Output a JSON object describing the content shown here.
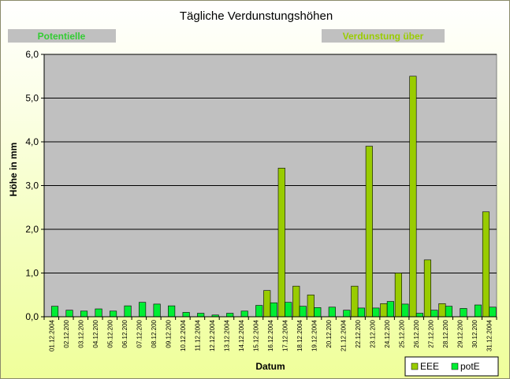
{
  "chart_data": {
    "type": "bar",
    "title": "Tägliche Verdunstungshöhen",
    "xlabel": "Datum",
    "ylabel": "Höhe in mm",
    "ylim": [
      0,
      6
    ],
    "yticks": [
      "0,0",
      "1,0",
      "2,0",
      "3,0",
      "4,0",
      "5,0",
      "6,0"
    ],
    "grid": true,
    "legend": "bottom-right",
    "categories": [
      "01.12.2004",
      "02.12.200",
      "03.12.200",
      "04.12.200",
      "05.12.200",
      "06.12.200",
      "07.12.200",
      "08.12.200",
      "09.12.200",
      "10.12.2004",
      "11.12.2004",
      "12.12.2004",
      "13.12.2004",
      "14.12.2004",
      "15.12.2004",
      "16.12.2004",
      "17.12.2004",
      "18.12.2004",
      "19.12.2004",
      "20.12.200",
      "21.12.2004",
      "22.12.200",
      "23.12.200",
      "24.12.200",
      "25.12.200",
      "26.12.200",
      "27.12.200",
      "28.12.200",
      "29.12.200",
      "30.12.200",
      "31.12.2004"
    ],
    "series": [
      {
        "name": "EEE",
        "color": "#99cc00",
        "values": [
          0,
          0,
          0,
          0,
          0,
          0,
          0,
          0,
          0,
          0,
          0,
          0,
          0,
          0,
          0,
          0.6,
          3.4,
          0.7,
          0.5,
          0,
          0,
          0.7,
          3.9,
          0.3,
          1.0,
          5.5,
          1.3,
          0.3,
          0,
          0,
          2.4
        ]
      },
      {
        "name": "potE",
        "color": "#00ee33",
        "values": [
          0.24,
          0.15,
          0.13,
          0.18,
          0.13,
          0.25,
          0.33,
          0.29,
          0.25,
          0.1,
          0.08,
          0.04,
          0.08,
          0.13,
          0.26,
          0.32,
          0.33,
          0.24,
          0.21,
          0.22,
          0.15,
          0.2,
          0.2,
          0.35,
          0.29,
          0.08,
          0.15,
          0.24,
          0.19,
          0.27,
          0.22
        ]
      }
    ]
  },
  "banners": {
    "left": {
      "text": "Potentielle",
      "color": "#33cc33"
    },
    "right": {
      "text": "Verdunstung über",
      "color": "#99cc00"
    }
  }
}
